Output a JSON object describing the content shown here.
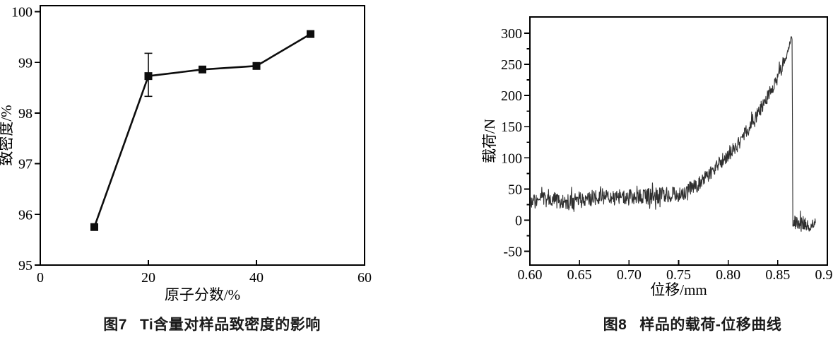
{
  "page": {
    "background": "#ffffff"
  },
  "colors": {
    "axis": "#000000",
    "text": "#000000",
    "caption_text": "#1a1a1a",
    "fig7_line": "#0d0d0d",
    "fig8_line": "#2f2f2f"
  },
  "chart_data": [
    {
      "type": "line",
      "figure_label": "图7",
      "caption": "Ti含量对样品致密度的影响",
      "xlabel": "原子分数/%",
      "ylabel": "致密度/%",
      "xlim": [
        0,
        60
      ],
      "ylim": [
        95,
        100.12
      ],
      "xticks": {
        "values": [
          0,
          20,
          40,
          60
        ],
        "labels": [
          "0",
          "20",
          "40",
          "60"
        ]
      },
      "yticks": {
        "values": [
          95,
          96,
          97,
          98,
          99,
          100
        ],
        "labels": [
          "95",
          "96",
          "97",
          "98",
          "99",
          "100"
        ]
      },
      "grid": false,
      "legend": null,
      "series": [
        {
          "name": "density-vs-Ti-content",
          "marker": "square",
          "marker_size": 11,
          "line_width": 2.6,
          "color": "#0d0d0d",
          "points": [
            [
              10,
              95.75
            ],
            [
              20,
              98.73
            ],
            [
              30,
              98.86
            ],
            [
              40,
              98.93
            ],
            [
              50,
              99.56
            ]
          ],
          "error_bars": [
            {
              "x": 20,
              "y": 98.73,
              "plus": 0.45,
              "minus": 0.4
            }
          ]
        }
      ]
    },
    {
      "type": "line",
      "figure_label": "图8",
      "caption": "样品的载荷-位移曲线",
      "xlabel": "位移/mm",
      "ylabel": "载荷/N",
      "xlim": [
        0.6,
        0.9
      ],
      "ylim": [
        -72,
        326
      ],
      "xticks": {
        "values": [
          0.6,
          0.65,
          0.7,
          0.75,
          0.8,
          0.85,
          0.9
        ],
        "labels": [
          "0.60",
          "0.65",
          "0.70",
          "0.75",
          "0.80",
          "0.85",
          "0.90"
        ]
      },
      "yticks": {
        "values": [
          -50,
          0,
          50,
          100,
          150,
          200,
          250,
          300
        ],
        "labels": [
          "-50",
          "0",
          "50",
          "100",
          "150",
          "200",
          "250",
          "300"
        ],
        "minor_step": 25
      },
      "grid": false,
      "legend": null,
      "series": [
        {
          "name": "load-displacement-curve",
          "noisy": true,
          "line_width": 1.1,
          "color": "#2f2f2f",
          "keypoints": [
            [
              0.6,
              30
            ],
            [
              0.61,
              32
            ],
            [
              0.625,
              33
            ],
            [
              0.64,
              28
            ],
            [
              0.66,
              35
            ],
            [
              0.68,
              36
            ],
            [
              0.7,
              36
            ],
            [
              0.72,
              38
            ],
            [
              0.735,
              40
            ],
            [
              0.752,
              42
            ],
            [
              0.77,
              58
            ],
            [
              0.79,
              88
            ],
            [
              0.81,
              122
            ],
            [
              0.825,
              158
            ],
            [
              0.84,
              198
            ],
            [
              0.85,
              228
            ],
            [
              0.858,
              258
            ],
            [
              0.862,
              283
            ],
            [
              0.8638,
              295
            ],
            [
              0.8645,
              288
            ],
            [
              0.8652,
              -10
            ],
            [
              0.866,
              -4
            ],
            [
              0.875,
              -4
            ],
            [
              0.882,
              -8
            ],
            [
              0.888,
              -3
            ]
          ],
          "noise_zones": [
            [
              0.6,
              0.753,
              13
            ],
            [
              0.753,
              0.8,
              12
            ],
            [
              0.8,
              0.856,
              11
            ],
            [
              0.856,
              0.8641,
              4
            ],
            [
              0.8641,
              0.8655,
              1
            ],
            [
              0.8655,
              0.888,
              11
            ]
          ],
          "sample_step": 0.0004,
          "spike_probability": 0.06,
          "spike_scale": 1.9,
          "seed": 9
        }
      ]
    }
  ]
}
